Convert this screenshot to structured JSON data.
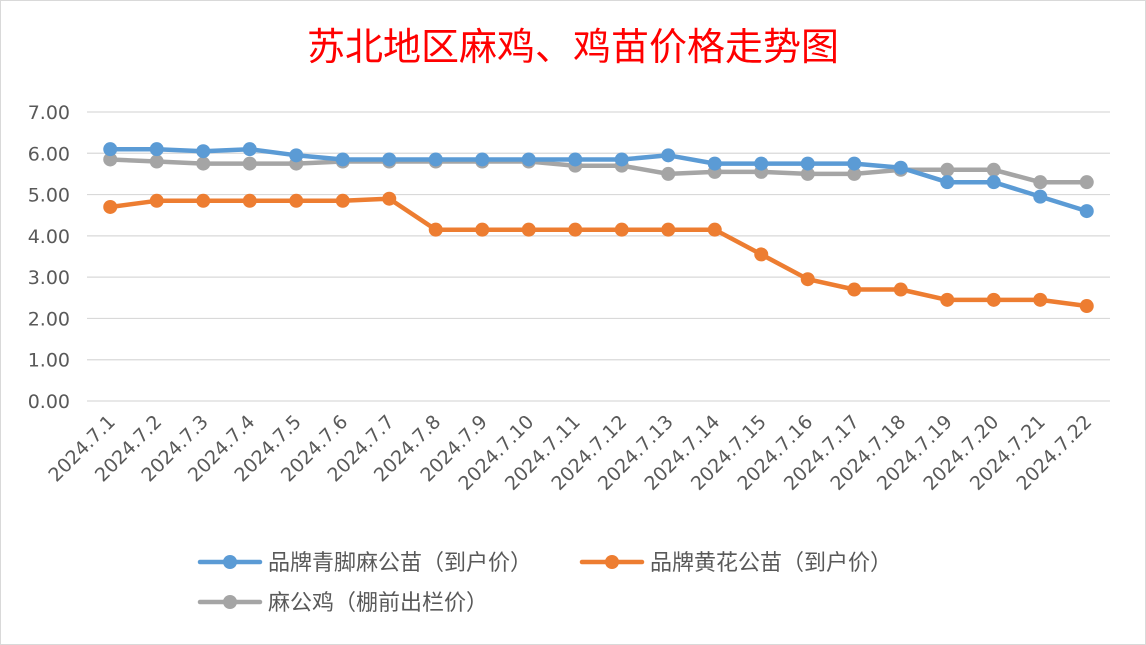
{
  "chart_data": {
    "type": "line",
    "title": "苏北地区麻鸡、鸡苗价格走势图",
    "xlabel": "",
    "ylabel": "",
    "ylim": [
      0,
      7
    ],
    "yticks": [
      "0.00",
      "1.00",
      "2.00",
      "3.00",
      "4.00",
      "5.00",
      "6.00",
      "7.00"
    ],
    "grid": true,
    "legend_position": "bottom",
    "x": [
      "2024.7.1",
      "2024.7.2",
      "2024.7.3",
      "2024.7.4",
      "2024.7.5",
      "2024.7.6",
      "2024.7.7",
      "2024.7.8",
      "2024.7.9",
      "2024.7.10",
      "2024.7.11",
      "2024.7.12",
      "2024.7.13",
      "2024.7.14",
      "2024.7.15",
      "2024.7.16",
      "2024.7.17",
      "2024.7.18",
      "2024.7.19",
      "2024.7.20",
      "2024.7.21",
      "2024.7.22"
    ],
    "series": [
      {
        "name": "品牌青脚麻公苗（到户价）",
        "color": "#5b9bd5",
        "values": [
          6.1,
          6.1,
          6.05,
          6.1,
          5.95,
          5.85,
          5.85,
          5.85,
          5.85,
          5.85,
          5.85,
          5.85,
          5.95,
          5.75,
          5.75,
          5.75,
          5.75,
          5.65,
          5.3,
          5.3,
          4.95,
          4.6
        ]
      },
      {
        "name": "品牌黄花公苗（到户价）",
        "color": "#ed7d31",
        "values": [
          4.7,
          4.85,
          4.85,
          4.85,
          4.85,
          4.85,
          4.9,
          4.15,
          4.15,
          4.15,
          4.15,
          4.15,
          4.15,
          4.15,
          3.55,
          2.95,
          2.7,
          2.7,
          2.45,
          2.45,
          2.45,
          2.3
        ]
      },
      {
        "name": "麻公鸡（棚前出栏价）",
        "color": "#a5a5a5",
        "values": [
          5.85,
          5.8,
          5.75,
          5.75,
          5.75,
          5.8,
          5.8,
          5.8,
          5.8,
          5.8,
          5.7,
          5.7,
          5.5,
          5.55,
          5.55,
          5.5,
          5.5,
          5.6,
          5.6,
          5.6,
          5.3,
          5.3
        ]
      }
    ],
    "title_color": "#ff0000",
    "text_color": "#595959",
    "gridline_color": "#d9d9d9"
  }
}
